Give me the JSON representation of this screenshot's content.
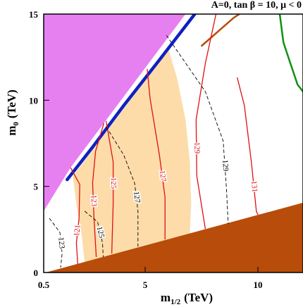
{
  "chart_data": {
    "type": "contour",
    "title": "A=0, tan β = 10, μ < 0",
    "x_label": "m",
    "x_label_subscript": "1/2",
    "x_label_unit": "(TeV)",
    "y_label": "m",
    "y_label_subscript": "0",
    "y_label_unit": "(TeV)",
    "xlim": [
      0.5,
      12
    ],
    "ylim": [
      0,
      15
    ],
    "xticks": [
      0.5,
      5,
      10
    ],
    "yticks": [
      0,
      5,
      10,
      15
    ],
    "regions": [
      {
        "color": "#fddcaa",
        "x": [
          2.32,
          2.17,
          1.95,
          1.79,
          6.03,
          6.41,
          6.79,
          6.98,
          7.04,
          6.98
        ],
        "y": [
          0.61,
          2.33,
          3.96,
          5.6,
          12.95,
          11.32,
          8.87,
          6.42,
          3.96,
          2.25
        ]
      },
      {
        "color": "#e680f0",
        "x": [
          0.5,
          6.79,
          1.69,
          0.5
        ],
        "y": [
          15,
          15,
          6.09,
          3.56
        ]
      },
      {
        "color": "#b84c0a",
        "x": [
          0.59,
          12,
          12
        ],
        "y": [
          0,
          4.05,
          0
        ]
      }
    ],
    "strips": [
      {
        "color": "#1020c0",
        "x": [
          1.54,
          2.64,
          4.05,
          5.63,
          7.2
        ],
        "y": [
          5.39,
          7.23,
          9.69,
          12.34,
          15
        ]
      },
      {
        "color": "#b84c0a",
        "x": [
          7.51,
          8.93,
          9.18
        ],
        "y": [
          13.16,
          14.79,
          15
        ]
      },
      {
        "color": "#109010",
        "x": [
          10.97,
          11.13,
          11.44,
          11.76,
          12
        ],
        "y": [
          15,
          13.36,
          12.14,
          10.91,
          10.5
        ]
      }
    ],
    "series": [
      {
        "name": "121",
        "color": "#e01010",
        "line_style": "solid",
        "x": [
          1.69,
          2.1,
          2.07,
          1.95,
          2.01
        ],
        "y": [
          6.09,
          5.11,
          3.15,
          1.72,
          0.49
        ]
      },
      {
        "name": "123",
        "color": "#e01010",
        "line_style": "solid",
        "x": [
          3.17,
          2.8,
          2.67,
          2.73,
          2.83
        ],
        "y": [
          8.66,
          7.03,
          5.19,
          3.15,
          0.9
        ]
      },
      {
        "name": "125",
        "color": "#e01010",
        "line_style": "solid",
        "x": [
          3.27,
          3.58,
          3.58,
          3.52
        ],
        "y": [
          8.79,
          6.42,
          3.96,
          1.1
        ]
      },
      {
        "name": "127",
        "color": "#e01010",
        "line_style": "solid",
        "x": [
          5.09,
          5.22,
          5.63,
          5.88,
          5.88
        ],
        "y": [
          11.81,
          10.09,
          6.82,
          4.37,
          1.92
        ]
      },
      {
        "name": "129",
        "color": "#e01010",
        "line_style": "solid",
        "x": [
          8.14,
          7.67,
          7.26,
          7.29,
          7.67
        ],
        "y": [
          15,
          12.14,
          8.87,
          5.6,
          2.53
        ]
      },
      {
        "name": "131",
        "color": "#e01010",
        "line_style": "solid",
        "x": [
          9.08,
          9.4,
          9.71,
          9.93,
          10.0
        ],
        "y": [
          11.32,
          9.69,
          6.42,
          3.56,
          3.35
        ]
      },
      {
        "name": "123",
        "color": "#000000",
        "line_style": "dashed",
        "x": [
          0.75,
          1.22,
          1.32,
          1.25
        ],
        "y": [
          3.15,
          2.33,
          1.1,
          0.29
        ]
      },
      {
        "name": "125",
        "color": "#000000",
        "line_style": "dashed",
        "x": [
          2.32,
          2.89,
          3.11,
          3.14
        ],
        "y": [
          3.56,
          2.94,
          1.72,
          0.9
        ]
      },
      {
        "name": "127",
        "color": "#000000",
        "line_style": "dashed",
        "x": [
          3.27,
          4.05,
          4.53,
          4.68,
          4.68
        ],
        "y": [
          8.46,
          6.82,
          5.19,
          3.56,
          1.51
        ]
      },
      {
        "name": "129",
        "color": "#000000",
        "line_style": "dashed",
        "x": [
          5.94,
          7.67,
          8.46,
          8.61,
          8.68
        ],
        "y": [
          13.77,
          10.5,
          7.64,
          4.78,
          2.82
        ]
      }
    ]
  }
}
